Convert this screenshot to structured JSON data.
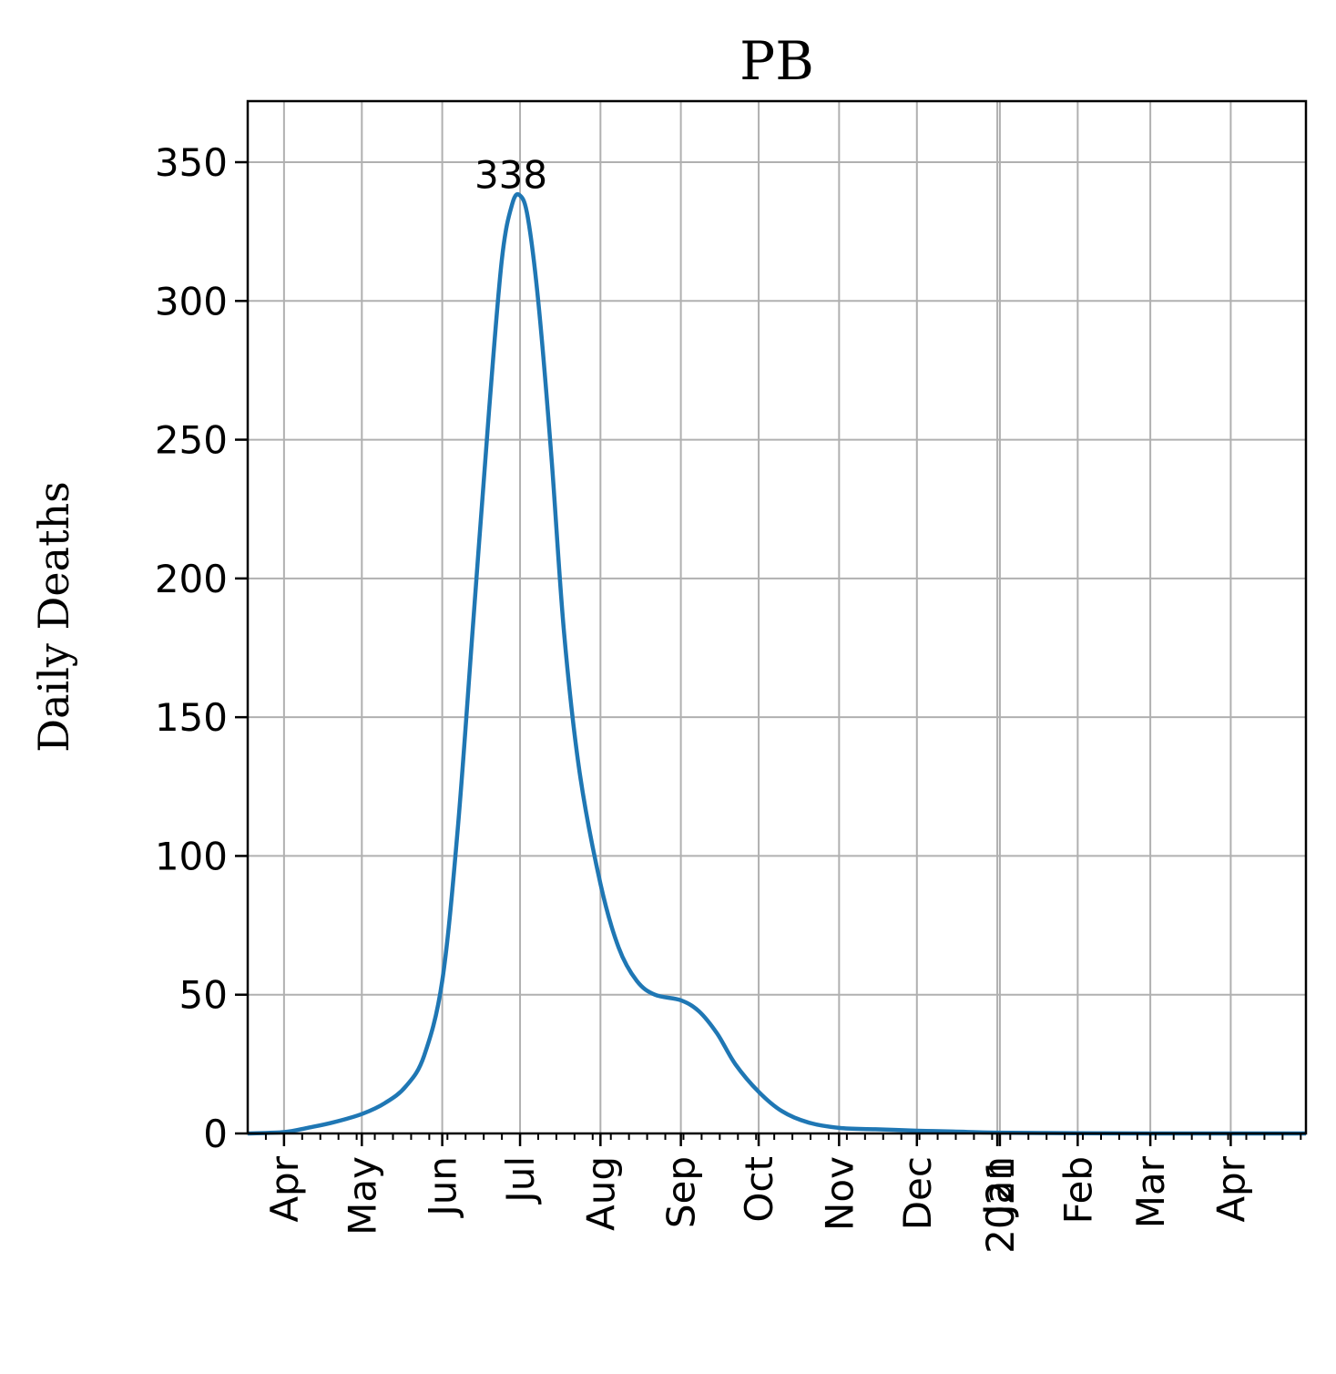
{
  "chart_data": {
    "type": "line",
    "title": "PB",
    "xlabel": "",
    "ylabel": "Daily Deaths",
    "ylim": [
      0,
      372
    ],
    "xlim": [
      "2020-03-18",
      "2021-04-30"
    ],
    "yticks": [
      0,
      50,
      100,
      150,
      200,
      250,
      300,
      350
    ],
    "xticks": [
      {
        "date": "2020-04-01",
        "label": "Apr"
      },
      {
        "date": "2020-05-01",
        "label": "May"
      },
      {
        "date": "2020-06-01",
        "label": "Jun"
      },
      {
        "date": "2020-07-01",
        "label": "Jul"
      },
      {
        "date": "2020-08-01",
        "label": "Aug"
      },
      {
        "date": "2020-09-01",
        "label": "Sep"
      },
      {
        "date": "2020-10-01",
        "label": "Oct"
      },
      {
        "date": "2020-11-01",
        "label": "Nov"
      },
      {
        "date": "2020-12-01",
        "label": "Dec"
      },
      {
        "date": "2021-01-01",
        "label": "Jan"
      },
      {
        "date": "2021-01-02",
        "label": "2021"
      },
      {
        "date": "2021-02-01",
        "label": "Feb"
      },
      {
        "date": "2021-03-01",
        "label": "Mar"
      },
      {
        "date": "2021-04-01",
        "label": "Apr"
      }
    ],
    "grid": true,
    "series": [
      {
        "color": "#1f77b4",
        "x": [
          "2020-03-18",
          "2020-04-01",
          "2020-04-10",
          "2020-04-20",
          "2020-05-01",
          "2020-05-10",
          "2020-05-18",
          "2020-05-25",
          "2020-06-01",
          "2020-06-07",
          "2020-06-13",
          "2020-06-19",
          "2020-06-24",
          "2020-06-28",
          "2020-07-01",
          "2020-07-04",
          "2020-07-08",
          "2020-07-13",
          "2020-07-18",
          "2020-07-24",
          "2020-08-01",
          "2020-08-08",
          "2020-08-15",
          "2020-08-22",
          "2020-09-01",
          "2020-09-08",
          "2020-09-15",
          "2020-09-22",
          "2020-10-01",
          "2020-10-10",
          "2020-10-20",
          "2020-11-01",
          "2020-11-15",
          "2020-12-01",
          "2020-12-15",
          "2021-01-01",
          "2021-02-01",
          "2021-03-01",
          "2021-04-01",
          "2021-04-30"
        ],
        "y": [
          0,
          0.5,
          2,
          4,
          7,
          11,
          17,
          28,
          55,
          110,
          185,
          260,
          315,
          335,
          338,
          330,
          300,
          245,
          180,
          130,
          90,
          67,
          55,
          50,
          48,
          44,
          36,
          25,
          15,
          8,
          4,
          2,
          1.5,
          1,
          0.7,
          0.3,
          0.1,
          0,
          0,
          0
        ]
      }
    ],
    "annotations": [
      {
        "text": "338",
        "x": "2020-07-01",
        "y": 338
      }
    ]
  }
}
